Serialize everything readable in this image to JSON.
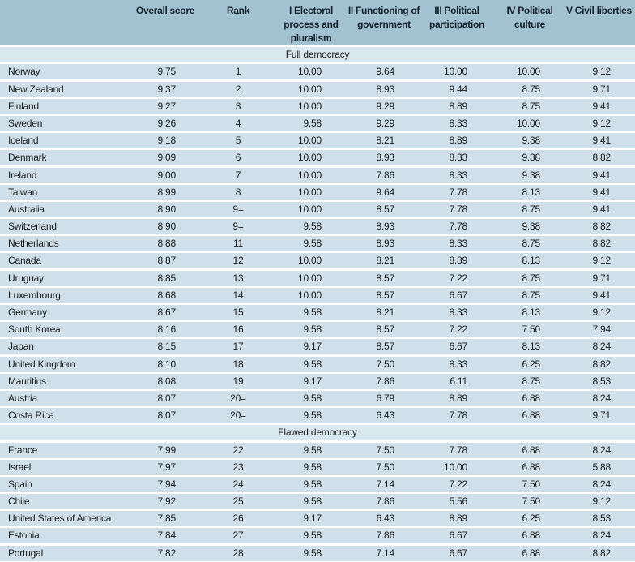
{
  "colors": {
    "header_bg": "#a3c2d1",
    "header_text": "#16242e",
    "row_bg": "#cfe0ea",
    "section_bg": "#d9e7ee",
    "gap": "#ffffff",
    "text": "#1c1c1c"
  },
  "chart_data": {
    "type": "table",
    "column_headers": [
      "",
      "Overall score",
      "Rank",
      "I Electoral\nprocess and\npluralism",
      "II Functioning of\ngovernment",
      "III Political\nparticipation",
      "IV Political\nculture",
      "V Civil liberties"
    ],
    "sections": [
      {
        "label": "Full democracy",
        "rows": [
          [
            "Norway",
            "9.75",
            "1",
            "10.00",
            "9.64",
            "10.00",
            "10.00",
            "9.12"
          ],
          [
            "New Zealand",
            "9.37",
            "2",
            "10.00",
            "8.93",
            "9.44",
            "8.75",
            "9.71"
          ],
          [
            "Finland",
            "9.27",
            "3",
            "10.00",
            "9.29",
            "8.89",
            "8.75",
            "9.41"
          ],
          [
            "Sweden",
            "9.26",
            "4",
            "9.58",
            "9.29",
            "8.33",
            "10.00",
            "9.12"
          ],
          [
            "Iceland",
            "9.18",
            "5",
            "10.00",
            "8.21",
            "8.89",
            "9.38",
            "9.41"
          ],
          [
            "Denmark",
            "9.09",
            "6",
            "10.00",
            "8.93",
            "8.33",
            "9.38",
            "8.82"
          ],
          [
            "Ireland",
            "9.00",
            "7",
            "10.00",
            "7.86",
            "8.33",
            "9.38",
            "9.41"
          ],
          [
            "Taiwan",
            "8.99",
            "8",
            "10.00",
            "9.64",
            "7.78",
            "8.13",
            "9.41"
          ],
          [
            "Australia",
            "8.90",
            "9=",
            "10.00",
            "8.57",
            "7.78",
            "8.75",
            "9.41"
          ],
          [
            "Switzerland",
            "8.90",
            "9=",
            "9.58",
            "8.93",
            "7.78",
            "9.38",
            "8.82"
          ],
          [
            "Netherlands",
            "8.88",
            "11",
            "9.58",
            "8.93",
            "8.33",
            "8.75",
            "8.82"
          ],
          [
            "Canada",
            "8.87",
            "12",
            "10.00",
            "8.21",
            "8.89",
            "8.13",
            "9.12"
          ],
          [
            "Uruguay",
            "8.85",
            "13",
            "10.00",
            "8.57",
            "7.22",
            "8.75",
            "9.71"
          ],
          [
            "Luxembourg",
            "8.68",
            "14",
            "10.00",
            "8.57",
            "6.67",
            "8.75",
            "9.41"
          ],
          [
            "Germany",
            "8.67",
            "15",
            "9.58",
            "8.21",
            "8.33",
            "8.13",
            "9.12"
          ],
          [
            "South Korea",
            "8.16",
            "16",
            "9.58",
            "8.57",
            "7.22",
            "7.50",
            "7.94"
          ],
          [
            "Japan",
            "8.15",
            "17",
            "9.17",
            "8.57",
            "6.67",
            "8.13",
            "8.24"
          ],
          [
            "United Kingdom",
            "8.10",
            "18",
            "9.58",
            "7.50",
            "8.33",
            "6.25",
            "8.82"
          ],
          [
            "Mauritius",
            "8.08",
            "19",
            "9.17",
            "7.86",
            "6.11",
            "8.75",
            "8.53"
          ],
          [
            "Austria",
            "8.07",
            "20=",
            "9.58",
            "6.79",
            "8.89",
            "6.88",
            "8.24"
          ],
          [
            "Costa Rica",
            "8.07",
            "20=",
            "9.58",
            "6.43",
            "7.78",
            "6.88",
            "9.71"
          ]
        ]
      },
      {
        "label": "Flawed democracy",
        "rows": [
          [
            "France",
            "7.99",
            "22",
            "9.58",
            "7.50",
            "7.78",
            "6.88",
            "8.24"
          ],
          [
            "Israel",
            "7.97",
            "23",
            "9.58",
            "7.50",
            "10.00",
            "6.88",
            "5.88"
          ],
          [
            "Spain",
            "7.94",
            "24",
            "9.58",
            "7.14",
            "7.22",
            "7.50",
            "8.24"
          ],
          [
            "Chile",
            "7.92",
            "25",
            "9.58",
            "7.86",
            "5.56",
            "7.50",
            "9.12"
          ],
          [
            "United States of America",
            "7.85",
            "26",
            "9.17",
            "6.43",
            "8.89",
            "6.25",
            "8.53"
          ],
          [
            "Estonia",
            "7.84",
            "27",
            "9.58",
            "7.86",
            "6.67",
            "6.88",
            "8.24"
          ],
          [
            "Portugal",
            "7.82",
            "28",
            "9.58",
            "7.14",
            "6.67",
            "6.88",
            "8.82"
          ]
        ]
      }
    ]
  }
}
